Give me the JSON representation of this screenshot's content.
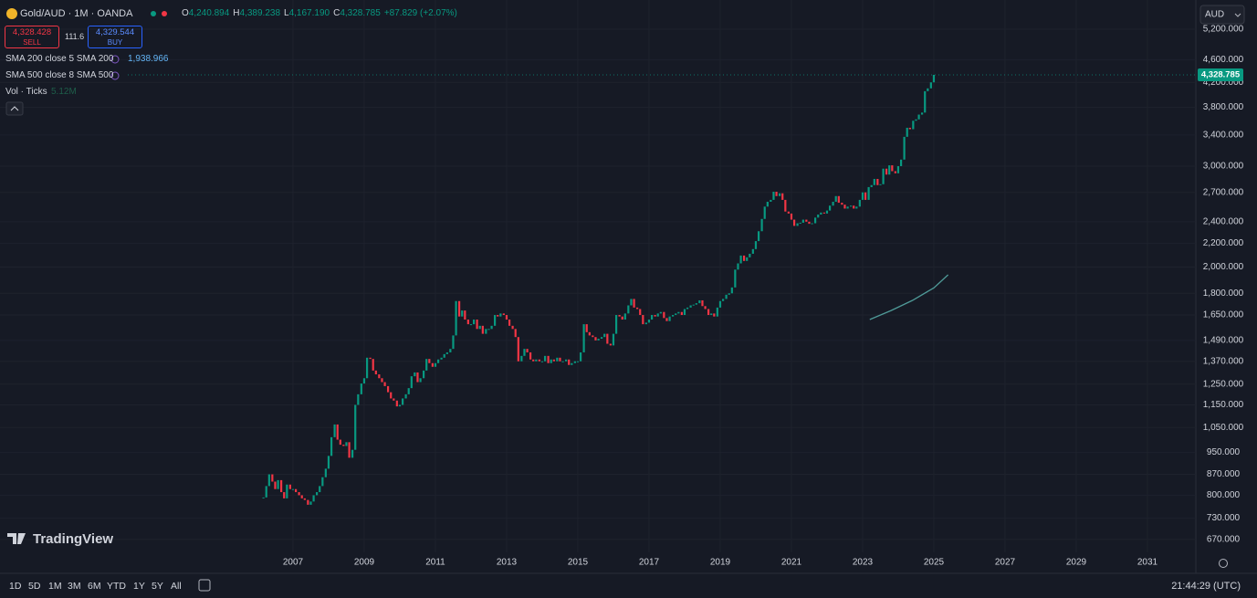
{
  "header": {
    "symbol": "Gold/AUD · 1M · OANDA",
    "ohlc": [
      {
        "key": "O",
        "value": "4,240.894"
      },
      {
        "key": "H",
        "value": "4,389.238"
      },
      {
        "key": "L",
        "value": "4,167.190"
      },
      {
        "key": "C",
        "value": "4,328.785"
      }
    ],
    "change": "+87.829 (+2.07%)"
  },
  "trade": {
    "sell_price": "4,328.428",
    "sell": "SELL",
    "spread": "111.6",
    "buy_price": "4,329.544",
    "buy": "BUY"
  },
  "indicators": [
    {
      "name": "SMA 200 close 5 SMA 200",
      "value": "1,938.966"
    },
    {
      "name": "SMA 500 close 8 SMA 500"
    },
    {
      "name": "Vol · Ticks",
      "value": "5.12M"
    }
  ],
  "currency": "AUD",
  "logo": "TradingView",
  "toolbar": {
    "ranges": [
      "1D",
      "5D",
      "1M",
      "3M",
      "6M",
      "YTD",
      "1Y",
      "5Y",
      "All"
    ],
    "clock": "21:44:29 (UTC)"
  },
  "chart_data": {
    "type": "candlestick",
    "log_scale": true,
    "grid": true,
    "up_color": "#089981",
    "down_color": "#f23645",
    "x": [
      2006.17,
      2006.25,
      2006.33,
      2006.42,
      2006.5,
      2006.58,
      2006.67,
      2006.75,
      2006.83,
      2006.92,
      2007.0,
      2007.08,
      2007.17,
      2007.25,
      2007.33,
      2007.42,
      2007.5,
      2007.58,
      2007.67,
      2007.75,
      2007.83,
      2007.92,
      2008.0,
      2008.08,
      2008.17,
      2008.25,
      2008.33,
      2008.42,
      2008.5,
      2008.58,
      2008.67,
      2008.75,
      2008.83,
      2008.92,
      2009.0,
      2009.08,
      2009.17,
      2009.25,
      2009.33,
      2009.42,
      2009.5,
      2009.58,
      2009.67,
      2009.75,
      2009.83,
      2009.92,
      2010.0,
      2010.08,
      2010.17,
      2010.25,
      2010.33,
      2010.42,
      2010.5,
      2010.58,
      2010.67,
      2010.75,
      2010.83,
      2010.92,
      2011.0,
      2011.08,
      2011.17,
      2011.25,
      2011.33,
      2011.42,
      2011.5,
      2011.58,
      2011.67,
      2011.75,
      2011.83,
      2011.92,
      2012.0,
      2012.08,
      2012.17,
      2012.25,
      2012.33,
      2012.42,
      2012.5,
      2012.58,
      2012.67,
      2012.75,
      2012.83,
      2012.92,
      2013.0,
      2013.08,
      2013.17,
      2013.25,
      2013.33,
      2013.42,
      2013.5,
      2013.58,
      2013.67,
      2013.75,
      2013.83,
      2013.92,
      2014.0,
      2014.08,
      2014.17,
      2014.25,
      2014.33,
      2014.42,
      2014.5,
      2014.58,
      2014.67,
      2014.75,
      2014.83,
      2014.92,
      2015.0,
      2015.08,
      2015.17,
      2015.25,
      2015.33,
      2015.42,
      2015.5,
      2015.58,
      2015.67,
      2015.75,
      2015.83,
      2015.92,
      2016.0,
      2016.08,
      2016.17,
      2016.25,
      2016.33,
      2016.42,
      2016.5,
      2016.58,
      2016.67,
      2016.75,
      2016.83,
      2016.92,
      2017.0,
      2017.08,
      2017.17,
      2017.25,
      2017.33,
      2017.42,
      2017.5,
      2017.58,
      2017.67,
      2017.75,
      2017.83,
      2017.92,
      2018.0,
      2018.08,
      2018.17,
      2018.25,
      2018.33,
      2018.42,
      2018.5,
      2018.58,
      2018.67,
      2018.75,
      2018.83,
      2018.92,
      2019.0,
      2019.08,
      2019.17,
      2019.25,
      2019.33,
      2019.42,
      2019.5,
      2019.58,
      2019.67,
      2019.75,
      2019.83,
      2019.92,
      2020.0,
      2020.08,
      2020.17,
      2020.25,
      2020.33,
      2020.42,
      2020.5,
      2020.58,
      2020.67,
      2020.75,
      2020.83,
      2020.92,
      2021.0,
      2021.08,
      2021.17,
      2021.25,
      2021.33,
      2021.42,
      2021.5,
      2021.58,
      2021.67,
      2021.75,
      2021.83,
      2021.92,
      2022.0,
      2022.08,
      2022.17,
      2022.25,
      2022.33,
      2022.42,
      2022.5,
      2022.58,
      2022.67,
      2022.75,
      2022.83,
      2022.92,
      2023.0,
      2023.08,
      2023.17,
      2023.25,
      2023.33,
      2023.42,
      2023.5,
      2023.58,
      2023.67,
      2023.75,
      2023.83,
      2023.92,
      2024.0,
      2024.08,
      2024.17,
      2024.25,
      2024.33,
      2024.42,
      2024.5,
      2024.58,
      2024.67,
      2024.75,
      2024.83,
      2024.92,
      2025.0
    ],
    "close": [
      793,
      830,
      870,
      845,
      820,
      850,
      810,
      790,
      835,
      820,
      820,
      810,
      800,
      790,
      785,
      770,
      780,
      800,
      810,
      830,
      860,
      890,
      937,
      1010,
      1063,
      1000,
      980,
      975,
      990,
      930,
      960,
      1150,
      1200,
      1253,
      1280,
      1390,
      1383,
      1320,
      1300,
      1280,
      1260,
      1240,
      1210,
      1180,
      1170,
      1143,
      1150,
      1180,
      1200,
      1230,
      1290,
      1310,
      1260,
      1280,
      1320,
      1383,
      1360,
      1340,
      1360,
      1380,
      1390,
      1410,
      1420,
      1440,
      1520,
      1745,
      1640,
      1680,
      1620,
      1590,
      1590,
      1620,
      1560,
      1580,
      1530,
      1560,
      1560,
      1580,
      1650,
      1640,
      1660,
      1650,
      1620,
      1580,
      1560,
      1510,
      1370,
      1400,
      1440,
      1420,
      1380,
      1370,
      1380,
      1370,
      1370,
      1400,
      1360,
      1380,
      1370,
      1390,
      1370,
      1370,
      1380,
      1350,
      1360,
      1370,
      1370,
      1420,
      1590,
      1540,
      1520,
      1510,
      1490,
      1500,
      1510,
      1530,
      1470,
      1460,
      1530,
      1650,
      1640,
      1620,
      1660,
      1715,
      1760,
      1700,
      1690,
      1650,
      1590,
      1600,
      1620,
      1650,
      1640,
      1660,
      1670,
      1630,
      1610,
      1640,
      1650,
      1660,
      1670,
      1650,
      1690,
      1700,
      1715,
      1720,
      1730,
      1750,
      1710,
      1690,
      1650,
      1660,
      1640,
      1700,
      1745,
      1760,
      1790,
      1800,
      1843,
      1980,
      2030,
      2095,
      2050,
      2080,
      2110,
      2150,
      2220,
      2310,
      2427,
      2550,
      2600,
      2620,
      2707,
      2660,
      2690,
      2620,
      2500,
      2480,
      2420,
      2360,
      2385,
      2390,
      2420,
      2400,
      2380,
      2385,
      2440,
      2470,
      2490,
      2480,
      2510,
      2560,
      2600,
      2660,
      2590,
      2570,
      2530,
      2550,
      2560,
      2530,
      2550,
      2620,
      2700,
      2620,
      2758,
      2780,
      2850,
      2780,
      2790,
      2970,
      2900,
      3010,
      2940,
      2915,
      3000,
      3080,
      3375,
      3500,
      3480,
      3600,
      3620,
      3690,
      3720,
      4054,
      4100,
      4200,
      4328.785
    ],
    "price_tag": "4,328.785",
    "sma": {
      "color": "#4f9a98",
      "x": [
        2023.2,
        2023.8,
        2024.4,
        2025.0,
        2025.4
      ],
      "values": [
        1620,
        1680,
        1750,
        1840,
        1938.966
      ]
    },
    "xlim": [
      1998.77,
      2032.36
    ],
    "xticks": [
      2007,
      2009,
      2011,
      2013,
      2015,
      2017,
      2019,
      2021,
      2023,
      2025,
      2027,
      2029,
      2031
    ],
    "ylim": [
      636,
      5847
    ],
    "yticks": [
      {
        "value": 670,
        "label": "670.000"
      },
      {
        "value": 730,
        "label": "730.000"
      },
      {
        "value": 800,
        "label": "800.000"
      },
      {
        "value": 870,
        "label": "870.000"
      },
      {
        "value": 950,
        "label": "950.000"
      },
      {
        "value": 1050,
        "label": "1,050.000"
      },
      {
        "value": 1150,
        "label": "1,150.000"
      },
      {
        "value": 1250,
        "label": "1,250.000"
      },
      {
        "value": 1370,
        "label": "1,370.000"
      },
      {
        "value": 1490,
        "label": "1,490.000"
      },
      {
        "value": 1650,
        "label": "1,650.000"
      },
      {
        "value": 1800,
        "label": "1,800.000"
      },
      {
        "value": 2000,
        "label": "2,000.000"
      },
      {
        "value": 2200,
        "label": "2,200.000"
      },
      {
        "value": 2400,
        "label": "2,400.000"
      },
      {
        "value": 2700,
        "label": "2,700.000"
      },
      {
        "value": 3000,
        "label": "3,000.000"
      },
      {
        "value": 3400,
        "label": "3,400.000"
      },
      {
        "value": 3800,
        "label": "3,800.000"
      },
      {
        "value": 4200,
        "label": "4,200.000"
      },
      {
        "value": 4600,
        "label": "4,600.000"
      },
      {
        "value": 5200,
        "label": "5,200.000"
      }
    ]
  }
}
